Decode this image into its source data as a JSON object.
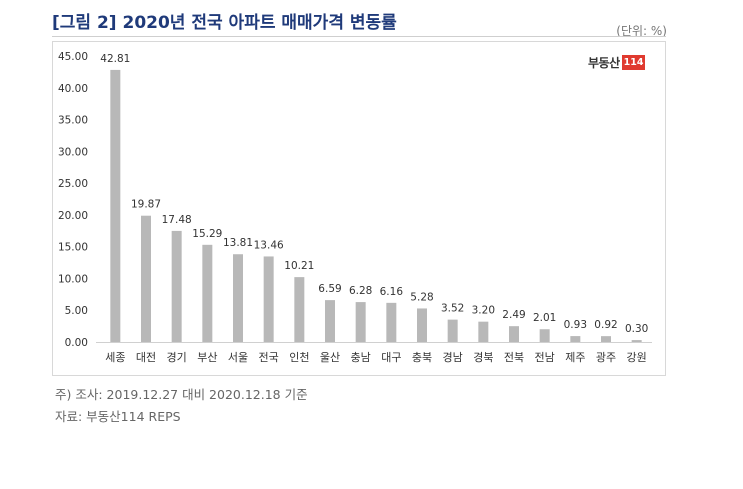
{
  "title": "[그림 2] 2020년 전국 아파트 매매가격 변동률",
  "unit": "(단위: %)",
  "logo": {
    "name": "부동산",
    "number": "114",
    "brand_color": "#e03a2f"
  },
  "notes": {
    "note1": "주) 조사: 2019.12.27 대비 2020.12.18 기준",
    "source": "자료: 부동산114 REPS"
  },
  "colors": {
    "bar": "#b8b8b8",
    "title": "#1f3a7a"
  },
  "chart_data": {
    "type": "bar",
    "categories": [
      "세종",
      "대전",
      "경기",
      "부산",
      "서울",
      "전국",
      "인천",
      "울산",
      "충남",
      "대구",
      "충북",
      "경남",
      "경북",
      "전북",
      "전남",
      "제주",
      "광주",
      "강원"
    ],
    "values": [
      42.81,
      19.87,
      17.48,
      15.29,
      13.81,
      13.46,
      10.21,
      6.59,
      6.28,
      6.16,
      5.28,
      3.52,
      3.2,
      2.49,
      2.01,
      0.93,
      0.92,
      0.3
    ],
    "value_labels": [
      "42.81",
      "19.87",
      "17.48",
      "15.29",
      "13.81",
      "13.46",
      "10.21",
      "6.59",
      "6.28",
      "6.16",
      "5.28",
      "3.52",
      "3.20",
      "2.49",
      "2.01",
      "0.93",
      "0.92",
      "0.30"
    ],
    "ylim": [
      0,
      45
    ],
    "yticks": [
      "0.00",
      "5.00",
      "10.00",
      "15.00",
      "20.00",
      "25.00",
      "30.00",
      "35.00",
      "40.00",
      "45.00"
    ],
    "title": "",
    "xlabel": "",
    "ylabel": "",
    "grid": false,
    "legend": "none"
  }
}
